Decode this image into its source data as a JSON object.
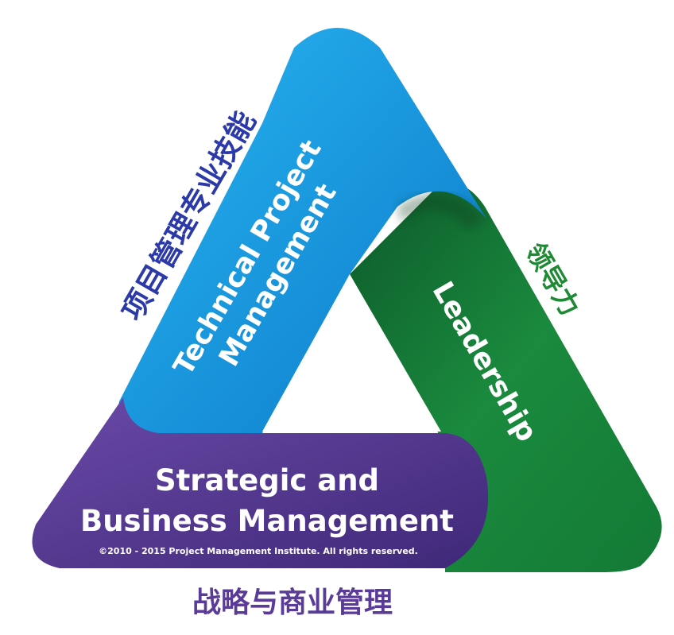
{
  "sides": {
    "technical": {
      "line1": "Technical Project",
      "line2": "Management",
      "cn": "项目管理专业技能",
      "color": "#1a9ce3",
      "cn_color": "#2b3aa8"
    },
    "leadership": {
      "label": "Leadership",
      "cn": "领导力",
      "color": "#1a7d3a",
      "cn_color": "#1f8a34"
    },
    "strategic": {
      "line1": "Strategic and",
      "line2": "Business Management",
      "cn": "战略与商业管理",
      "color": "#5b3b93",
      "cn_color": "#5a3c98"
    }
  },
  "copyright": "©2010 - 2015 Project Management Institute. All rights reserved."
}
